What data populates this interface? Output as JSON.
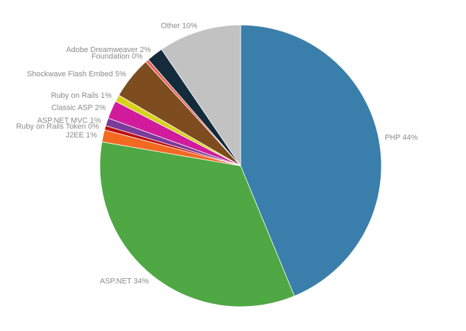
{
  "chart_data": {
    "type": "pie",
    "title": "",
    "slices": [
      {
        "label": "PHP",
        "pct_label": "44%",
        "value": 44.2,
        "color": "#3a7fab"
      },
      {
        "label": "ASP.NET",
        "pct_label": "34%",
        "value": 34.3,
        "color": "#4fa843"
      },
      {
        "label": "J2EE",
        "pct_label": "1%",
        "value": 1.4,
        "color": "#f26a22"
      },
      {
        "label": "Ruby on Rails Token",
        "pct_label": "0%",
        "value": 0.5,
        "color": "#c00f10"
      },
      {
        "label": "ASP.NET MVC",
        "pct_label": "1%",
        "value": 0.9,
        "color": "#7b3b9a"
      },
      {
        "label": "Classic ASP",
        "pct_label": "2%",
        "value": 2.1,
        "color": "#d11b9c"
      },
      {
        "label": "Ruby on Rails",
        "pct_label": "1%",
        "value": 0.8,
        "color": "#d8d21d"
      },
      {
        "label": "Shockwave Flash Embed",
        "pct_label": "5%",
        "value": 4.9,
        "color": "#7d4c1f"
      },
      {
        "label": "Foundation",
        "pct_label": "0%",
        "value": 0.4,
        "color": "#e8665a"
      },
      {
        "label": "Adobe Dreamweaver",
        "pct_label": "2%",
        "value": 1.9,
        "color": "#142b3c"
      },
      {
        "label": "Other",
        "pct_label": "10%",
        "value": 9.6,
        "color": "#c2c2c2"
      }
    ]
  }
}
